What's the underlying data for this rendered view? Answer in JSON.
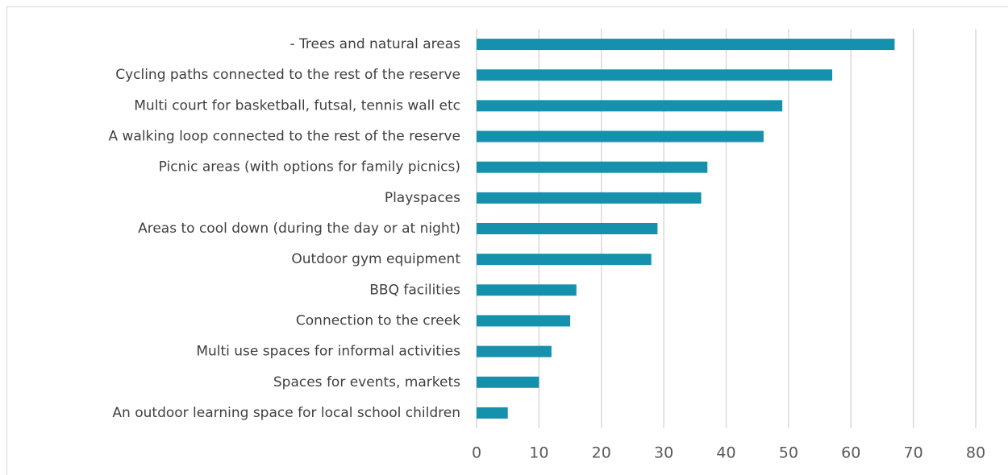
{
  "chart_data": {
    "type": "barh",
    "categories": [
      "- Trees and natural areas",
      "Cycling paths connected to the rest of the reserve",
      "Multi court for basketball, futsal, tennis wall etc",
      "A walking loop connected to the rest of the reserve",
      "Picnic areas (with options for family picnics)",
      "Playspaces",
      "Areas to cool down (during the day or at night)",
      "Outdoor gym equipment",
      "BBQ facilities",
      "Connection to the creek",
      "Multi use spaces for informal activities",
      "Spaces for events, markets",
      "An outdoor learning space for local school children"
    ],
    "values": [
      67,
      57,
      49,
      46,
      37,
      36,
      29,
      28,
      16,
      15,
      12,
      10,
      5
    ],
    "color": "#1590ad",
    "xlim": [
      0,
      80
    ],
    "xticks": [
      0,
      10,
      20,
      30,
      40,
      50,
      60,
      70,
      80
    ],
    "grid": true
  }
}
